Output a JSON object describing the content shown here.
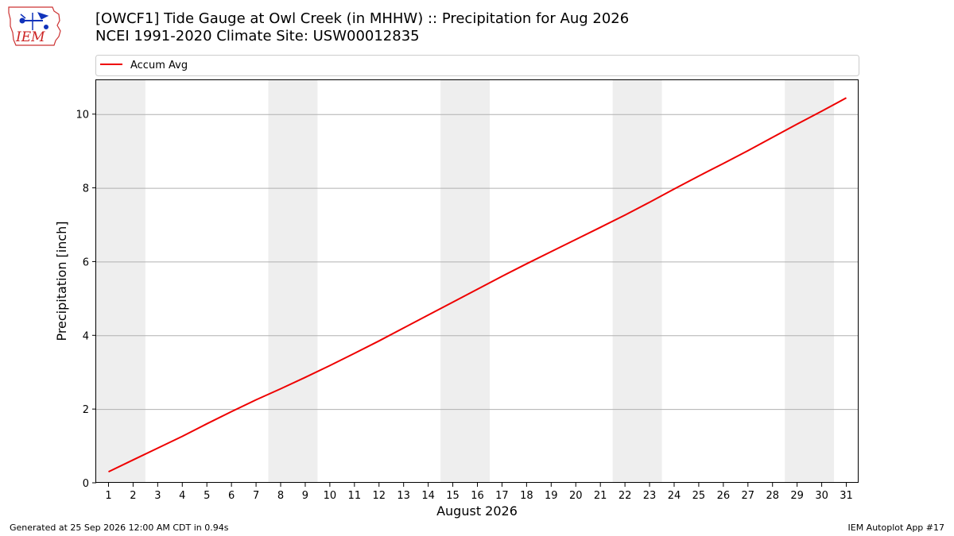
{
  "logo": {
    "text": "IEM",
    "color": "#cc2222",
    "icon": "iem-iowa-logo-icon"
  },
  "header": {
    "title_line1": "[OWCF1] Tide Gauge at Owl Creek (in MHHW) :: Precipitation for Aug 2026",
    "title_line2": "NCEI 1991-2020 Climate Site: USW00012835"
  },
  "footer": {
    "generated": "Generated at 25 Sep 2026 12:00 AM CDT in 0.94s",
    "app": "IEM Autoplot App #17"
  },
  "chart_data": {
    "type": "line",
    "title": "[OWCF1] Tide Gauge at Owl Creek (in MHHW) :: Precipitation for Aug 2026",
    "subtitle": "NCEI 1991-2020 Climate Site: USW00012835",
    "xlabel": "August 2026",
    "ylabel": "Precipitation [inch]",
    "xlim": [
      0.5,
      31.5
    ],
    "ylim": [
      0,
      10.92
    ],
    "x_ticks": [
      1,
      2,
      3,
      4,
      5,
      6,
      7,
      8,
      9,
      10,
      11,
      12,
      13,
      14,
      15,
      16,
      17,
      18,
      19,
      20,
      21,
      22,
      23,
      24,
      25,
      26,
      27,
      28,
      29,
      30,
      31
    ],
    "y_ticks": [
      0,
      2,
      4,
      6,
      8,
      10
    ],
    "grid": {
      "y": true,
      "x": false
    },
    "legend_placement": "top-left, above plot",
    "weekend_bands": [
      [
        0.5,
        2.5
      ],
      [
        7.5,
        9.5
      ],
      [
        14.5,
        16.5
      ],
      [
        21.5,
        23.5
      ],
      [
        28.5,
        30.5
      ]
    ],
    "band_color": "#eeeeee",
    "series": [
      {
        "name": "Accum Avg",
        "color": "#ee0000",
        "x": [
          1,
          2,
          3,
          4,
          5,
          6,
          7,
          8,
          9,
          10,
          11,
          12,
          13,
          14,
          15,
          16,
          17,
          18,
          19,
          20,
          21,
          22,
          23,
          24,
          25,
          26,
          27,
          28,
          29,
          30,
          31
        ],
        "values": [
          0.3,
          0.62,
          0.94,
          1.26,
          1.6,
          1.93,
          2.25,
          2.55,
          2.86,
          3.18,
          3.51,
          3.85,
          4.2,
          4.55,
          4.9,
          5.25,
          5.6,
          5.94,
          6.27,
          6.6,
          6.93,
          7.26,
          7.61,
          7.97,
          8.32,
          8.66,
          9.01,
          9.37,
          9.73,
          10.08,
          10.44
        ]
      }
    ]
  }
}
